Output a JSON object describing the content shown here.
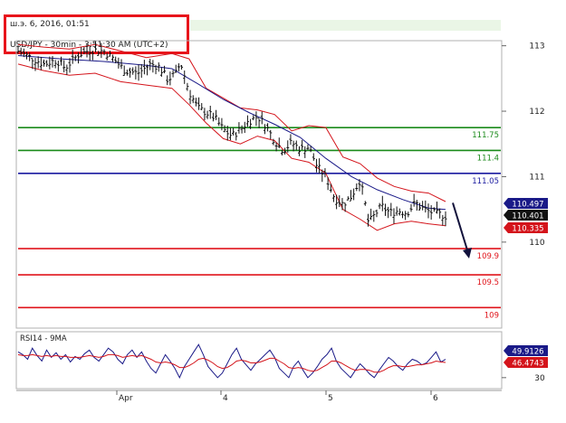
{
  "header": {
    "date": "ш.э. 6, 2016, 01:51",
    "symbol": "USD/JPY - 30min - 3:51:30 AM (UTC+2)"
  },
  "chart_data": [
    {
      "type": "line",
      "subtype": "ohlc",
      "title": "USD/JPY - 30min",
      "ylim": [
        108.7,
        113.05
      ],
      "y_ticks": [
        "113",
        "112",
        "111",
        "110"
      ],
      "x_ticks": [
        "Apr",
        "4",
        "5",
        "6"
      ],
      "grid": false,
      "horizontal_levels": [
        {
          "label": "111.75",
          "value": 111.75,
          "color": "#1a8a1a"
        },
        {
          "label": "111.4",
          "value": 111.4,
          "color": "#1a8a1a"
        },
        {
          "label": "111.05",
          "value": 111.05,
          "color": "#1a1aa0"
        },
        {
          "label": "109.9",
          "value": 109.9,
          "color": "#e0141b"
        },
        {
          "label": "109.5",
          "value": 109.5,
          "color": "#e0141b"
        },
        {
          "label": "109",
          "value": 109.0,
          "color": "#e0141b"
        }
      ],
      "price_badges": [
        {
          "label": "110.497",
          "value": 110.497,
          "color": "#1a1a88"
        },
        {
          "label": "110.401",
          "value": 110.401,
          "color": "#111111"
        },
        {
          "label": "110.335",
          "value": 110.335,
          "color": "#d4141b"
        }
      ],
      "price_path": [
        [
          0.0,
          112.92
        ],
        [
          0.03,
          112.82
        ],
        [
          0.06,
          112.72
        ],
        [
          0.09,
          112.78
        ],
        [
          0.11,
          112.66
        ],
        [
          0.14,
          112.86
        ],
        [
          0.17,
          112.94
        ],
        [
          0.2,
          112.92
        ],
        [
          0.22,
          112.82
        ],
        [
          0.25,
          112.62
        ],
        [
          0.28,
          112.58
        ],
        [
          0.31,
          112.72
        ],
        [
          0.33,
          112.68
        ],
        [
          0.35,
          112.48
        ],
        [
          0.37,
          112.58
        ],
        [
          0.38,
          112.75
        ],
        [
          0.4,
          112.3
        ],
        [
          0.42,
          112.05
        ],
        [
          0.44,
          111.98
        ],
        [
          0.46,
          111.9
        ],
        [
          0.48,
          111.72
        ],
        [
          0.5,
          111.62
        ],
        [
          0.52,
          111.72
        ],
        [
          0.54,
          111.85
        ],
        [
          0.56,
          111.92
        ],
        [
          0.58,
          111.78
        ],
        [
          0.6,
          111.55
        ],
        [
          0.62,
          111.4
        ],
        [
          0.64,
          111.52
        ],
        [
          0.66,
          111.42
        ],
        [
          0.68,
          111.45
        ],
        [
          0.7,
          111.15
        ],
        [
          0.72,
          111.0
        ],
        [
          0.74,
          110.68
        ],
        [
          0.76,
          110.58
        ],
        [
          0.78,
          110.7
        ],
        [
          0.8,
          110.95
        ],
        [
          0.81,
          110.65
        ],
        [
          0.82,
          110.28
        ],
        [
          0.83,
          110.38
        ],
        [
          0.85,
          110.55
        ],
        [
          0.87,
          110.45
        ],
        [
          0.89,
          110.48
        ],
        [
          0.91,
          110.45
        ],
        [
          0.93,
          110.6
        ],
        [
          0.95,
          110.5
        ],
        [
          0.97,
          110.45
        ],
        [
          1.0,
          110.4
        ]
      ],
      "moving_average": [
        [
          0.0,
          112.85
        ],
        [
          0.1,
          112.8
        ],
        [
          0.2,
          112.76
        ],
        [
          0.3,
          112.7
        ],
        [
          0.36,
          112.65
        ],
        [
          0.42,
          112.42
        ],
        [
          0.48,
          112.18
        ],
        [
          0.54,
          111.98
        ],
        [
          0.6,
          111.8
        ],
        [
          0.66,
          111.6
        ],
        [
          0.72,
          111.28
        ],
        [
          0.78,
          111.0
        ],
        [
          0.84,
          110.8
        ],
        [
          0.9,
          110.65
        ],
        [
          0.96,
          110.52
        ],
        [
          1.0,
          110.5
        ]
      ],
      "bollinger_upper": [
        [
          0.0,
          113.02
        ],
        [
          0.06,
          112.98
        ],
        [
          0.12,
          112.95
        ],
        [
          0.18,
          113.02
        ],
        [
          0.24,
          112.92
        ],
        [
          0.3,
          112.82
        ],
        [
          0.36,
          112.88
        ],
        [
          0.4,
          112.8
        ],
        [
          0.44,
          112.35
        ],
        [
          0.48,
          112.2
        ],
        [
          0.52,
          112.05
        ],
        [
          0.56,
          112.02
        ],
        [
          0.6,
          111.95
        ],
        [
          0.64,
          111.7
        ],
        [
          0.68,
          111.78
        ],
        [
          0.72,
          111.75
        ],
        [
          0.76,
          111.3
        ],
        [
          0.8,
          111.2
        ],
        [
          0.84,
          110.98
        ],
        [
          0.88,
          110.85
        ],
        [
          0.92,
          110.78
        ],
        [
          0.96,
          110.75
        ],
        [
          1.0,
          110.62
        ]
      ],
      "bollinger_lower": [
        [
          0.0,
          112.72
        ],
        [
          0.06,
          112.62
        ],
        [
          0.12,
          112.55
        ],
        [
          0.18,
          112.58
        ],
        [
          0.24,
          112.45
        ],
        [
          0.3,
          112.4
        ],
        [
          0.36,
          112.35
        ],
        [
          0.4,
          112.1
        ],
        [
          0.44,
          111.82
        ],
        [
          0.48,
          111.58
        ],
        [
          0.52,
          111.5
        ],
        [
          0.56,
          111.62
        ],
        [
          0.6,
          111.55
        ],
        [
          0.64,
          111.28
        ],
        [
          0.68,
          111.22
        ],
        [
          0.72,
          111.05
        ],
        [
          0.76,
          110.5
        ],
        [
          0.8,
          110.35
        ],
        [
          0.84,
          110.18
        ],
        [
          0.88,
          110.28
        ],
        [
          0.92,
          110.32
        ],
        [
          0.96,
          110.28
        ],
        [
          1.0,
          110.25
        ]
      ],
      "forecast_arrow": {
        "from_value": 110.6,
        "to_value": 109.75,
        "color": "#12123c"
      }
    },
    {
      "type": "line",
      "title": "RSI14 - 9MA",
      "ylim": [
        20,
        75
      ],
      "y_ticks": [
        "30"
      ],
      "badges": [
        {
          "label": "49.9126",
          "value": 49.9126,
          "color": "#1a1a88"
        },
        {
          "label": "46.4743",
          "value": 46.4743,
          "color": "#d4141b"
        }
      ],
      "series": [
        {
          "name": "RSI14",
          "color": "#1a1a88",
          "values": [
            58,
            55,
            50,
            62,
            54,
            48,
            60,
            52,
            57,
            50,
            55,
            47,
            53,
            50,
            56,
            60,
            52,
            48,
            55,
            62,
            58,
            50,
            45,
            55,
            60,
            52,
            58,
            48,
            40,
            35,
            45,
            55,
            48,
            40,
            30,
            42,
            50,
            58,
            66,
            55,
            42,
            36,
            30,
            35,
            45,
            55,
            62,
            50,
            44,
            38,
            45,
            50,
            55,
            60,
            52,
            40,
            35,
            30,
            42,
            48,
            38,
            30,
            35,
            42,
            50,
            55,
            62,
            48,
            40,
            35,
            30,
            38,
            45,
            40,
            34,
            30,
            38,
            45,
            52,
            48,
            42,
            38,
            45,
            50,
            48,
            44,
            46,
            52,
            58,
            47,
            49.9
          ]
        },
        {
          "name": "9MA",
          "color": "#d4141b",
          "values": [
            55,
            54,
            54,
            55,
            54,
            53,
            54,
            53,
            54,
            53,
            53,
            52,
            52,
            52,
            53,
            54,
            53,
            52,
            53,
            55,
            55,
            54,
            52,
            53,
            54,
            53,
            54,
            52,
            50,
            47,
            46,
            47,
            46,
            44,
            41,
            41,
            43,
            46,
            50,
            51,
            49,
            46,
            42,
            40,
            41,
            44,
            48,
            49,
            48,
            46,
            46,
            47,
            49,
            51,
            51,
            48,
            45,
            41,
            40,
            41,
            40,
            38,
            37,
            38,
            41,
            44,
            48,
            48,
            46,
            43,
            40,
            38,
            39,
            39,
            38,
            36,
            36,
            38,
            41,
            43,
            43,
            42,
            42,
            43,
            44,
            44,
            45,
            46,
            48,
            47,
            46.5
          ]
        }
      ]
    }
  ]
}
